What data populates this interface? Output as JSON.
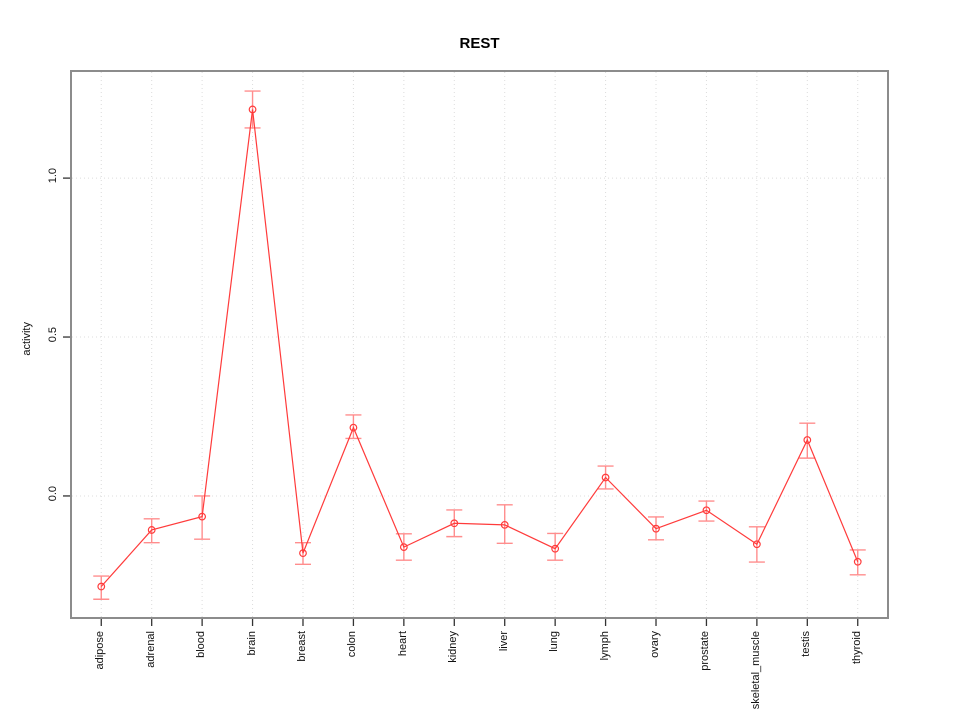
{
  "chart_data": {
    "type": "line",
    "title": "REST",
    "xlabel": "",
    "ylabel": "activity",
    "categories": [
      "adipose",
      "adrenal",
      "blood",
      "brain",
      "breast",
      "colon",
      "heart",
      "kidney",
      "liver",
      "lung",
      "lymph",
      "ovary",
      "prostate",
      "skeletal_muscle",
      "testis",
      "thyroid"
    ],
    "series": [
      {
        "name": "activity",
        "color": "#ff3b3b",
        "error_color": "#ff8d8d",
        "values": [
          -0.285,
          -0.107,
          -0.065,
          1.216,
          -0.18,
          0.215,
          -0.161,
          -0.086,
          -0.091,
          -0.166,
          0.058,
          -0.103,
          -0.045,
          -0.152,
          0.176,
          -0.207
        ],
        "error_high": [
          -0.252,
          -0.072,
          0.0,
          1.274,
          -0.147,
          0.255,
          -0.119,
          -0.044,
          -0.028,
          -0.118,
          0.094,
          -0.066,
          -0.016,
          -0.097,
          0.229,
          -0.17
        ],
        "error_low": [
          -0.325,
          -0.147,
          -0.136,
          1.158,
          -0.215,
          0.181,
          -0.202,
          -0.128,
          -0.149,
          -0.202,
          0.022,
          -0.138,
          -0.079,
          -0.208,
          0.119,
          -0.248
        ]
      }
    ],
    "ytick_values": [
      0.0,
      0.5,
      1.0
    ],
    "ytick_labels": [
      "0.0",
      "0.5",
      "1.0"
    ],
    "ylim": [
      -0.384,
      1.337
    ],
    "grid": "dotted",
    "legend_position": "none",
    "point_style": "open-circle"
  },
  "style": {
    "plot_border_color": "#8c8c8c",
    "grid_color": "#dcdcdc",
    "tick_color": "#333333",
    "text_color": "#111111",
    "background": "#ffffff"
  }
}
